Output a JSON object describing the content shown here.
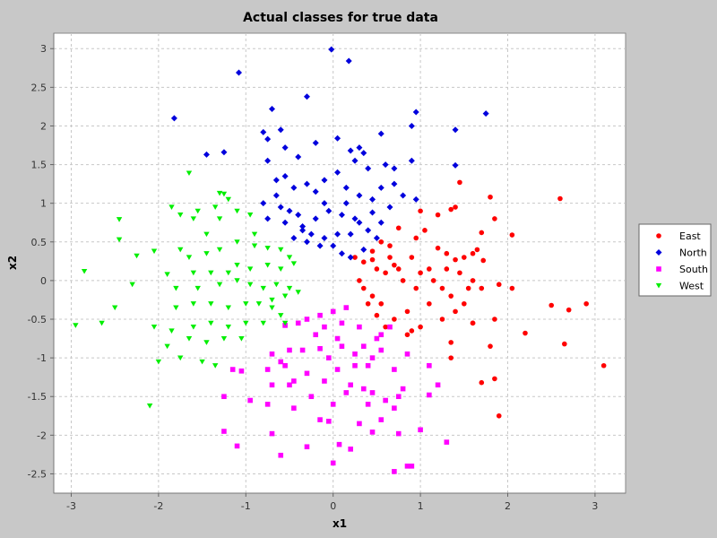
{
  "chart_data": {
    "type": "scatter",
    "title": "Actual classes for true data",
    "xlabel": "x1",
    "ylabel": "x2",
    "xlim": [
      -3.2,
      3.35
    ],
    "ylim": [
      -2.75,
      3.2
    ],
    "xticks": [
      "-3",
      "-2",
      "-1",
      "0",
      "1",
      "2",
      "3"
    ],
    "xtick_values": [
      -3,
      -2,
      -1,
      0,
      1,
      2,
      3
    ],
    "yticks": [
      "-2.5",
      "-2",
      "-1.5",
      "-1",
      "-0.5",
      "0",
      "0.5",
      "1",
      "1.5",
      "2",
      "2.5",
      "3"
    ],
    "ytick_values": [
      -2.5,
      -2,
      -1.5,
      -1,
      -0.5,
      0,
      0.5,
      1,
      1.5,
      2,
      2.5,
      3
    ],
    "grid": true,
    "legend_position": "right",
    "series": [
      {
        "name": "East",
        "color": "#ff0000",
        "marker": "circle",
        "points": [
          [
            2.6,
            1.06
          ],
          [
            1.8,
            1.08
          ],
          [
            1.45,
            1.27
          ],
          [
            1.35,
            0.92
          ],
          [
            1.4,
            0.95
          ],
          [
            1.85,
            0.8
          ],
          [
            1.7,
            0.62
          ],
          [
            2.05,
            0.59
          ],
          [
            1.65,
            0.4
          ],
          [
            1.5,
            0.3
          ],
          [
            1.6,
            0.35
          ],
          [
            1.72,
            0.26
          ],
          [
            1.4,
            0.27
          ],
          [
            1.2,
            0.42
          ],
          [
            1.3,
            0.35
          ],
          [
            1.05,
            0.65
          ],
          [
            1.0,
            0.9
          ],
          [
            1.2,
            0.85
          ],
          [
            0.95,
            0.55
          ],
          [
            0.75,
            0.68
          ],
          [
            0.65,
            0.45
          ],
          [
            0.55,
            0.5
          ],
          [
            0.45,
            0.38
          ],
          [
            0.35,
            0.24
          ],
          [
            0.45,
            0.27
          ],
          [
            0.5,
            0.15
          ],
          [
            0.6,
            0.1
          ],
          [
            0.7,
            0.2
          ],
          [
            0.75,
            0.15
          ],
          [
            0.8,
            0.0
          ],
          [
            0.9,
            0.3
          ],
          [
            1.0,
            0.1
          ],
          [
            1.1,
            0.15
          ],
          [
            1.15,
            0.0
          ],
          [
            1.25,
            -0.1
          ],
          [
            1.35,
            -0.2
          ],
          [
            1.3,
            0.15
          ],
          [
            1.45,
            0.1
          ],
          [
            1.6,
            0.0
          ],
          [
            1.7,
            -0.1
          ],
          [
            1.9,
            -0.05
          ],
          [
            2.05,
            -0.1
          ],
          [
            1.85,
            -0.5
          ],
          [
            1.6,
            -0.55
          ],
          [
            1.5,
            -0.3
          ],
          [
            1.4,
            -0.4
          ],
          [
            1.25,
            -0.5
          ],
          [
            1.1,
            -0.3
          ],
          [
            0.95,
            -0.1
          ],
          [
            0.85,
            -0.4
          ],
          [
            0.7,
            -0.5
          ],
          [
            0.55,
            -0.3
          ],
          [
            0.45,
            -0.2
          ],
          [
            0.35,
            -0.1
          ],
          [
            0.3,
            0.0
          ],
          [
            0.25,
            0.3
          ],
          [
            0.6,
            -0.6
          ],
          [
            0.85,
            -0.7
          ],
          [
            1.0,
            -0.6
          ],
          [
            1.35,
            -0.8
          ],
          [
            1.6,
            -0.55
          ],
          [
            1.8,
            -0.85
          ],
          [
            2.2,
            -0.68
          ],
          [
            2.5,
            -0.32
          ],
          [
            2.7,
            -0.38
          ],
          [
            2.9,
            -0.3
          ],
          [
            2.65,
            -0.82
          ],
          [
            3.1,
            -1.1
          ],
          [
            1.85,
            -1.27
          ],
          [
            1.7,
            -1.32
          ],
          [
            1.9,
            -1.75
          ],
          [
            1.35,
            -1.0
          ],
          [
            0.9,
            -0.65
          ],
          [
            0.5,
            -0.45
          ],
          [
            0.65,
            0.3
          ],
          [
            0.4,
            -0.3
          ],
          [
            1.55,
            -0.1
          ]
        ]
      },
      {
        "name": "North",
        "color": "#0000dd",
        "marker": "diamond",
        "points": [
          [
            -0.02,
            2.99
          ],
          [
            0.18,
            2.84
          ],
          [
            -1.08,
            2.69
          ],
          [
            -0.3,
            2.38
          ],
          [
            -0.7,
            2.22
          ],
          [
            -1.82,
            2.1
          ],
          [
            -0.6,
            1.95
          ],
          [
            -0.8,
            1.92
          ],
          [
            -0.75,
            1.83
          ],
          [
            0.95,
            2.18
          ],
          [
            0.9,
            2.0
          ],
          [
            0.55,
            1.9
          ],
          [
            1.75,
            2.16
          ],
          [
            1.4,
            1.95
          ],
          [
            -1.45,
            1.63
          ],
          [
            -1.25,
            1.66
          ],
          [
            -0.55,
            1.72
          ],
          [
            -0.75,
            1.55
          ],
          [
            -0.4,
            1.6
          ],
          [
            -0.2,
            1.78
          ],
          [
            0.05,
            1.84
          ],
          [
            0.2,
            1.68
          ],
          [
            0.3,
            1.72
          ],
          [
            0.35,
            1.65
          ],
          [
            0.25,
            1.55
          ],
          [
            0.4,
            1.45
          ],
          [
            0.6,
            1.5
          ],
          [
            0.7,
            1.45
          ],
          [
            0.9,
            1.55
          ],
          [
            1.4,
            1.49
          ],
          [
            -0.55,
            1.35
          ],
          [
            -0.45,
            1.2
          ],
          [
            -0.65,
            1.3
          ],
          [
            -0.3,
            1.25
          ],
          [
            -0.2,
            1.15
          ],
          [
            -0.1,
            1.3
          ],
          [
            0.05,
            1.4
          ],
          [
            0.15,
            1.2
          ],
          [
            0.3,
            1.1
          ],
          [
            0.45,
            1.05
          ],
          [
            0.55,
            1.2
          ],
          [
            0.7,
            1.25
          ],
          [
            0.8,
            1.1
          ],
          [
            0.95,
            1.05
          ],
          [
            -0.8,
            1.0
          ],
          [
            -0.6,
            0.95
          ],
          [
            -0.5,
            0.9
          ],
          [
            -0.4,
            0.85
          ],
          [
            -0.75,
            0.8
          ],
          [
            -0.55,
            0.75
          ],
          [
            -0.35,
            0.7
          ],
          [
            -0.2,
            0.8
          ],
          [
            -0.05,
            0.9
          ],
          [
            0.1,
            0.85
          ],
          [
            0.25,
            0.8
          ],
          [
            0.3,
            0.75
          ],
          [
            0.4,
            0.65
          ],
          [
            0.2,
            0.6
          ],
          [
            0.05,
            0.6
          ],
          [
            -0.1,
            0.55
          ],
          [
            -0.15,
            0.45
          ],
          [
            -0.3,
            0.5
          ],
          [
            -0.45,
            0.55
          ],
          [
            0.0,
            0.45
          ],
          [
            0.1,
            0.35
          ],
          [
            0.2,
            0.3
          ],
          [
            0.35,
            0.4
          ],
          [
            -0.35,
            0.65
          ],
          [
            0.65,
            0.95
          ],
          [
            0.5,
            0.55
          ],
          [
            0.55,
            0.75
          ],
          [
            -0.1,
            1.0
          ],
          [
            0.15,
            1.0
          ],
          [
            -0.65,
            1.1
          ],
          [
            0.45,
            0.88
          ],
          [
            -0.25,
            0.6
          ]
        ]
      },
      {
        "name": "South",
        "color": "#ff00ff",
        "marker": "square",
        "points": [
          [
            0.7,
            -2.47
          ],
          [
            0.85,
            -2.4
          ],
          [
            0.9,
            -2.4
          ],
          [
            0.0,
            -2.36
          ],
          [
            -0.6,
            -2.26
          ],
          [
            1.3,
            -2.09
          ],
          [
            -1.1,
            -2.14
          ],
          [
            -0.3,
            -2.15
          ],
          [
            0.07,
            -2.12
          ],
          [
            0.2,
            -2.18
          ],
          [
            -1.25,
            -1.95
          ],
          [
            -0.7,
            -1.98
          ],
          [
            0.45,
            -1.96
          ],
          [
            0.75,
            -1.98
          ],
          [
            1.0,
            -1.93
          ],
          [
            -0.15,
            -1.8
          ],
          [
            -0.05,
            -1.82
          ],
          [
            0.3,
            -1.85
          ],
          [
            0.55,
            -1.8
          ],
          [
            -0.45,
            -1.65
          ],
          [
            -0.75,
            -1.6
          ],
          [
            0.0,
            -1.6
          ],
          [
            0.4,
            -1.6
          ],
          [
            0.7,
            -1.65
          ],
          [
            -1.25,
            -1.5
          ],
          [
            -0.95,
            -1.55
          ],
          [
            -0.25,
            -1.5
          ],
          [
            0.15,
            -1.45
          ],
          [
            0.45,
            -1.45
          ],
          [
            0.75,
            -1.5
          ],
          [
            1.1,
            -1.48
          ],
          [
            1.2,
            -1.35
          ],
          [
            -0.7,
            -1.35
          ],
          [
            -0.5,
            -1.35
          ],
          [
            -0.1,
            -1.3
          ],
          [
            0.2,
            -1.35
          ],
          [
            0.35,
            -1.4
          ],
          [
            0.8,
            -1.4
          ],
          [
            -1.05,
            -1.17
          ],
          [
            -0.75,
            -1.15
          ],
          [
            -0.55,
            -1.1
          ],
          [
            -0.3,
            -1.2
          ],
          [
            0.05,
            -1.15
          ],
          [
            0.25,
            -1.1
          ],
          [
            0.4,
            -1.1
          ],
          [
            0.7,
            -1.15
          ],
          [
            1.1,
            -1.1
          ],
          [
            -0.7,
            -0.95
          ],
          [
            -0.5,
            -0.9
          ],
          [
            -0.35,
            -0.9
          ],
          [
            -0.15,
            -0.88
          ],
          [
            0.1,
            -0.85
          ],
          [
            0.35,
            -0.85
          ],
          [
            0.55,
            -0.9
          ],
          [
            0.85,
            -0.95
          ],
          [
            -0.6,
            -1.05
          ],
          [
            -0.4,
            -0.55
          ],
          [
            -0.3,
            -0.5
          ],
          [
            -0.15,
            -0.45
          ],
          [
            -0.1,
            -0.6
          ],
          [
            0.1,
            -0.55
          ],
          [
            0.3,
            -0.6
          ],
          [
            0.55,
            -0.7
          ],
          [
            0.65,
            -0.6
          ],
          [
            -0.55,
            -0.58
          ],
          [
            0.5,
            -0.75
          ],
          [
            0.05,
            -0.75
          ],
          [
            -0.05,
            -1.0
          ],
          [
            0.25,
            -0.95
          ],
          [
            0.45,
            -1.0
          ],
          [
            -0.2,
            -0.7
          ],
          [
            0.0,
            -0.4
          ],
          [
            -1.15,
            -1.15
          ],
          [
            -0.45,
            -1.3
          ],
          [
            0.6,
            -1.55
          ],
          [
            0.15,
            -0.35
          ]
        ]
      },
      {
        "name": "West",
        "color": "#00ee00",
        "marker": "triangle-down",
        "points": [
          [
            -1.65,
            1.39
          ],
          [
            -1.3,
            1.13
          ],
          [
            -1.25,
            1.12
          ],
          [
            -1.2,
            1.05
          ],
          [
            -1.35,
            0.95
          ],
          [
            -1.55,
            0.9
          ],
          [
            -1.85,
            0.95
          ],
          [
            -1.75,
            0.85
          ],
          [
            -1.6,
            0.8
          ],
          [
            -1.3,
            0.8
          ],
          [
            -1.1,
            0.9
          ],
          [
            -0.95,
            0.85
          ],
          [
            -2.45,
            0.79
          ],
          [
            -2.45,
            0.53
          ],
          [
            -2.05,
            0.38
          ],
          [
            -2.25,
            0.32
          ],
          [
            -1.75,
            0.4
          ],
          [
            -1.65,
            0.3
          ],
          [
            -1.45,
            0.35
          ],
          [
            -1.3,
            0.4
          ],
          [
            -1.1,
            0.5
          ],
          [
            -0.9,
            0.45
          ],
          [
            -0.75,
            0.42
          ],
          [
            -0.6,
            0.4
          ],
          [
            -0.5,
            0.3
          ],
          [
            -0.45,
            0.22
          ],
          [
            -0.6,
            0.15
          ],
          [
            -0.75,
            0.2
          ],
          [
            -0.95,
            0.15
          ],
          [
            -1.1,
            0.2
          ],
          [
            -1.2,
            0.1
          ],
          [
            -1.4,
            0.1
          ],
          [
            -1.6,
            0.1
          ],
          [
            -1.9,
            0.08
          ],
          [
            -2.85,
            0.12
          ],
          [
            -2.3,
            -0.05
          ],
          [
            -1.8,
            -0.1
          ],
          [
            -1.55,
            -0.1
          ],
          [
            -1.3,
            -0.05
          ],
          [
            -1.1,
            0.0
          ],
          [
            -0.95,
            -0.05
          ],
          [
            -0.8,
            -0.1
          ],
          [
            -0.65,
            -0.05
          ],
          [
            -0.5,
            -0.1
          ],
          [
            -0.4,
            -0.15
          ],
          [
            -0.55,
            -0.2
          ],
          [
            -0.7,
            -0.25
          ],
          [
            -0.85,
            -0.3
          ],
          [
            -1.0,
            -0.3
          ],
          [
            -1.2,
            -0.35
          ],
          [
            -1.4,
            -0.3
          ],
          [
            -1.6,
            -0.3
          ],
          [
            -1.8,
            -0.35
          ],
          [
            -2.5,
            -0.35
          ],
          [
            -2.95,
            -0.58
          ],
          [
            -2.65,
            -0.55
          ],
          [
            -2.05,
            -0.6
          ],
          [
            -1.85,
            -0.65
          ],
          [
            -1.6,
            -0.6
          ],
          [
            -1.4,
            -0.55
          ],
          [
            -1.2,
            -0.6
          ],
          [
            -1.0,
            -0.55
          ],
          [
            -0.8,
            -0.55
          ],
          [
            -0.6,
            -0.45
          ],
          [
            -0.55,
            -0.55
          ],
          [
            -1.65,
            -0.75
          ],
          [
            -1.45,
            -0.8
          ],
          [
            -1.25,
            -0.75
          ],
          [
            -1.05,
            -0.75
          ],
          [
            -1.9,
            -0.85
          ],
          [
            -2.0,
            -1.05
          ],
          [
            -1.75,
            -1.0
          ],
          [
            -1.5,
            -1.05
          ],
          [
            -1.35,
            -1.1
          ],
          [
            -2.1,
            -1.62
          ],
          [
            -0.7,
            -0.35
          ],
          [
            -0.9,
            0.6
          ],
          [
            -1.45,
            0.6
          ]
        ]
      }
    ]
  }
}
